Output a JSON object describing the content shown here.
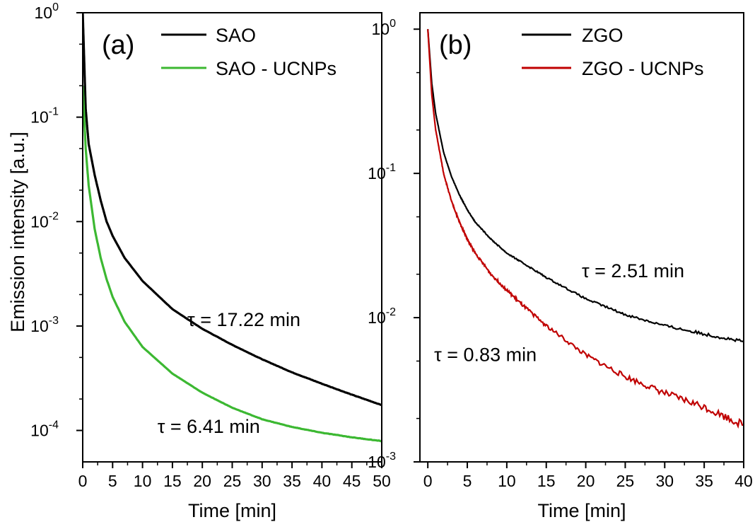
{
  "chart_data": [
    {
      "type": "line",
      "panel_label": "(a)",
      "xlabel": "Time [min]",
      "ylabel": "Emission intensity [a.u.]",
      "xlim": [
        0,
        50
      ],
      "ylim": [
        5e-05,
        1
      ],
      "y_scale": "log",
      "x_ticks": [
        0,
        5,
        10,
        15,
        20,
        25,
        30,
        35,
        40,
        45,
        50
      ],
      "x_tick_labels": [
        "0",
        "5",
        "10",
        "15",
        "20",
        "25",
        "30",
        "35",
        "40",
        "45",
        "50"
      ],
      "y_ticks": [
        {
          "base": "10",
          "exp": "0",
          "value": 1
        },
        {
          "base": "10",
          "exp": "-1",
          "value": 0.1
        },
        {
          "base": "10",
          "exp": "-2",
          "value": 0.01
        },
        {
          "base": "10",
          "exp": "-3",
          "value": 0.001
        },
        {
          "base": "10",
          "exp": "-4",
          "value": 0.0001
        }
      ],
      "legend_position": "top-right",
      "series": [
        {
          "name": "SAO",
          "color": "#000000",
          "x": [
            0,
            0.5,
            1,
            2,
            3,
            4,
            5,
            7,
            10,
            15,
            20,
            25,
            30,
            35,
            40,
            45,
            50
          ],
          "y": [
            1,
            0.12,
            0.055,
            0.028,
            0.016,
            0.01,
            0.0073,
            0.0045,
            0.0027,
            0.00145,
            0.00094,
            0.00066,
            0.00048,
            0.00036,
            0.00028,
            0.00022,
            0.000175
          ]
        },
        {
          "name": "SAO - UCNPs",
          "color": "#3cb832",
          "x": [
            0,
            0.5,
            1,
            2,
            3,
            4,
            5,
            7,
            10,
            15,
            20,
            25,
            30,
            35,
            40,
            45,
            50
          ],
          "y": [
            0.2,
            0.05,
            0.022,
            0.0085,
            0.0045,
            0.0028,
            0.0019,
            0.0011,
            0.00063,
            0.00035,
            0.00023,
            0.000165,
            0.000128,
            0.000108,
            9.5e-05,
            8.6e-05,
            7.9e-05
          ]
        }
      ],
      "annotations": [
        {
          "text": "τ = 17.22 min",
          "x": 17.5,
          "y": 0.001
        },
        {
          "text": "τ = 6.41 min",
          "x": 12.5,
          "y": 9.5e-05
        }
      ]
    },
    {
      "type": "line",
      "panel_label": "(b)",
      "xlabel": "Time [min]",
      "ylabel": "",
      "xlim": [
        -1,
        40
      ],
      "ylim": [
        0.001,
        1.3
      ],
      "y_scale": "log",
      "x_ticks": [
        0,
        5,
        10,
        15,
        20,
        25,
        30,
        35,
        40
      ],
      "x_tick_labels": [
        "0",
        "5",
        "10",
        "15",
        "20",
        "25",
        "30",
        "35",
        "40"
      ],
      "y_ticks": [
        {
          "base": "10",
          "exp": "0",
          "value": 1
        },
        {
          "base": "10",
          "exp": "-1",
          "value": 0.1
        },
        {
          "base": "10",
          "exp": "-2",
          "value": 0.01
        },
        {
          "base": "10",
          "exp": "-3",
          "value": 0.001
        }
      ],
      "legend_position": "top-right",
      "series": [
        {
          "name": "ZGO",
          "color": "#000000",
          "x": [
            0,
            0.5,
            1,
            2,
            3,
            4,
            5,
            6,
            8,
            10,
            12,
            15,
            20,
            25,
            30,
            35,
            40
          ],
          "y": [
            1,
            0.42,
            0.26,
            0.14,
            0.095,
            0.071,
            0.056,
            0.046,
            0.035,
            0.028,
            0.024,
            0.019,
            0.0135,
            0.0105,
            0.0088,
            0.0077,
            0.0068
          ]
        },
        {
          "name": "ZGO - UCNPs",
          "color": "#c00000",
          "x": [
            0,
            0.5,
            1,
            2,
            3,
            4,
            5,
            6,
            8,
            10,
            12,
            15,
            20,
            25,
            30,
            35,
            40
          ],
          "y": [
            1,
            0.35,
            0.2,
            0.1,
            0.064,
            0.046,
            0.035,
            0.028,
            0.02,
            0.0155,
            0.0122,
            0.0088,
            0.0055,
            0.0039,
            0.003,
            0.0024,
            0.0018
          ]
        }
      ],
      "annotations": [
        {
          "text": "τ = 2.51 min",
          "x": 19.5,
          "y": 0.019
        },
        {
          "text": "τ = 0.83 min",
          "x": 0.8,
          "y": 0.005
        }
      ]
    }
  ]
}
